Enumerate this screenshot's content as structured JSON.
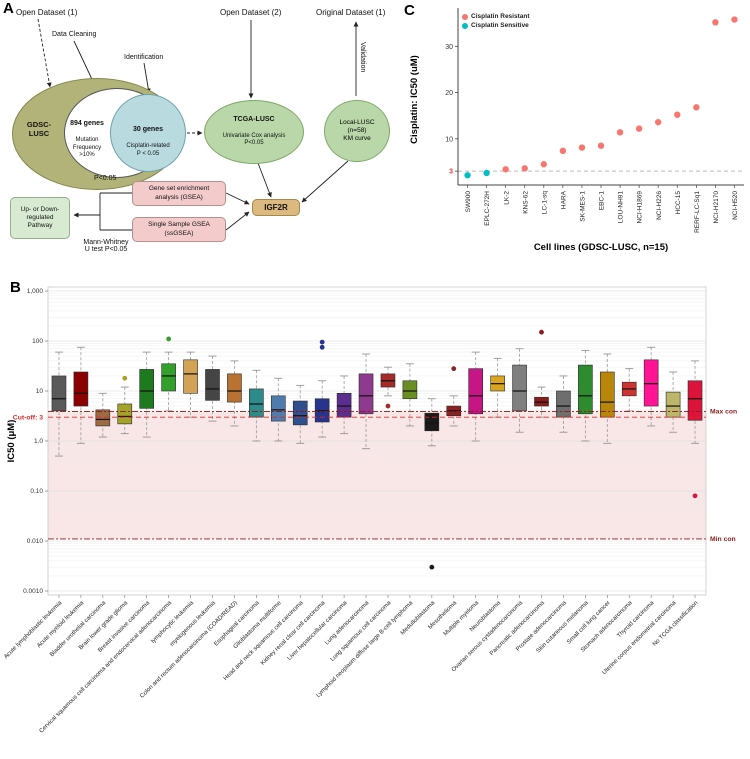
{
  "figure": {
    "panel_a_label": "A",
    "panel_b_label": "B",
    "panel_c_label": "C"
  },
  "flowchart": {
    "open_dataset_1": "Open Dataset (1)",
    "data_cleaning": "Data Cleaning",
    "identification": "Identification",
    "open_dataset_2": "Open Dataset (2)",
    "original_dataset_1": "Original Dataset (1)",
    "validation": "Validation",
    "gdsc_lusc": "GDSC-\nLUSC",
    "genes_894_title": "894 genes",
    "genes_894_sub": "Mutation\nFrequency\n>10%",
    "genes_30_title": "30 genes",
    "genes_30_sub": "Cisplatin-related\nP < 0.05",
    "tcga_title": "TCGA-LUSC",
    "tcga_sub": "Univariate Cox analysis\nP<0.05",
    "local_node": "Local-LUSC\n(n=58)\nKM curve",
    "igf2r": "IGF2R",
    "p_value": "P<0.05",
    "gsea_box": "Gene set enrichment\nanalysis (GSEA)",
    "ssgsea_box": "Single Sample GSEA\n(ssGSEA)",
    "mann_whitney": "Mann-Whitney\nU test P<0.05",
    "pathway_box": "Up- or Down-\nregulated\nPathway"
  },
  "chart_data": [
    {
      "type": "scatter",
      "title": "",
      "xlabel": "Cell lines (GDSC-LUSC, n=15)",
      "ylabel": "Cisplatin: IC50 (uM)",
      "ylim": [
        0,
        37
      ],
      "yticks": [
        3,
        10,
        20,
        30
      ],
      "cutoff_y": 3,
      "grid": false,
      "legend_position": "top-left",
      "legend": [
        {
          "label": "Cisplatin Resistant",
          "color": "#F8766D"
        },
        {
          "label": "Cisplatin Sensitive",
          "color": "#00BFC4"
        }
      ],
      "points": [
        {
          "label": "SW900",
          "value": 2.1,
          "group": "sensitive"
        },
        {
          "label": "EPLC-272H",
          "value": 2.6,
          "group": "sensitive"
        },
        {
          "label": "LK-2",
          "value": 3.4,
          "group": "resistant"
        },
        {
          "label": "KNS-62",
          "value": 3.6,
          "group": "resistant"
        },
        {
          "label": "LC-1-sq",
          "value": 4.5,
          "group": "resistant"
        },
        {
          "label": "HARA",
          "value": 7.4,
          "group": "resistant"
        },
        {
          "label": "SK-MES-1",
          "value": 8.1,
          "group": "resistant"
        },
        {
          "label": "EBC-1",
          "value": 8.5,
          "group": "resistant"
        },
        {
          "label": "LOU-NH91",
          "value": 11.4,
          "group": "resistant"
        },
        {
          "label": "NCI-H1869",
          "value": 12.2,
          "group": "resistant"
        },
        {
          "label": "NCI-H226",
          "value": 13.6,
          "group": "resistant"
        },
        {
          "label": "HCC-15",
          "value": 15.2,
          "group": "resistant"
        },
        {
          "label": "RERF-LC-Sq1",
          "value": 16.8,
          "group": "resistant"
        },
        {
          "label": "NCI-H2170",
          "value": 35.2,
          "group": "resistant"
        },
        {
          "label": "NCI-H520",
          "value": 35.8,
          "group": "resistant"
        }
      ]
    },
    {
      "type": "box",
      "title": "",
      "xlabel": "",
      "ylabel": "IC50 (μM)",
      "ylog": true,
      "ylim": [
        0.001,
        1000
      ],
      "yticks": [
        {
          "value": 1000,
          "label": "1,000"
        },
        {
          "value": 100,
          "label": "100"
        },
        {
          "value": 10,
          "label": "10"
        },
        {
          "value": 1,
          "label": "1.0"
        },
        {
          "value": 0.1,
          "label": "0.10"
        },
        {
          "value": 0.01,
          "label": "0.010"
        },
        {
          "value": 0.001,
          "label": "0.0010"
        }
      ],
      "cutoff": {
        "label": "Cut-off: 3",
        "value": 3
      },
      "max_con": {
        "label": "Max con",
        "value": 3.9
      },
      "min_con": {
        "label": "Min con",
        "value": 0.011
      },
      "band_color": "#f7e1e1",
      "boxes": [
        {
          "category": "Acute lymphoblastic leukemia",
          "color": "#5A5A5A",
          "lo": 0.5,
          "q1": 4,
          "med": 7,
          "q3": 20,
          "hi": 60,
          "outliers": []
        },
        {
          "category": "Acute myeloid leukemia",
          "color": "#8B0000",
          "lo": 0.9,
          "q1": 5,
          "med": 9,
          "q3": 24,
          "hi": 75,
          "outliers": []
        },
        {
          "category": "Bladder urothelial carcinoma",
          "color": "#9C6B44",
          "lo": 1.2,
          "q1": 2,
          "med": 2.7,
          "q3": 4.2,
          "hi": 9,
          "outliers": []
        },
        {
          "category": "Brain lower grade glioma",
          "color": "#A3A329",
          "lo": 1.4,
          "q1": 2.2,
          "med": 3.1,
          "q3": 5.5,
          "hi": 12,
          "outliers": [
            18
          ]
        },
        {
          "category": "Breast invasive carcinoma",
          "color": "#1E7A1E",
          "lo": 1.2,
          "q1": 4.5,
          "med": 10,
          "q3": 27,
          "hi": 60,
          "outliers": []
        },
        {
          "category": "Cervical squamous cell carcinoma and endocervical adenocarcinoma",
          "color": "#33A02C",
          "lo": 4,
          "q1": 10,
          "med": 20,
          "q3": 35,
          "hi": 60,
          "outliers": [
            110
          ]
        },
        {
          "category": "lymphocytic leukemia",
          "color": "#D2A356",
          "lo": 3,
          "q1": 9,
          "med": 22,
          "q3": 42,
          "hi": 60,
          "outliers": []
        },
        {
          "category": "myelogenous leukemia",
          "color": "#454545",
          "lo": 2.5,
          "q1": 6.5,
          "med": 11,
          "q3": 27,
          "hi": 50,
          "outliers": []
        },
        {
          "category": "Colon and rectum adenocarcinoma (COAD/READ)",
          "color": "#B87333",
          "lo": 2,
          "q1": 6,
          "med": 10,
          "q3": 22,
          "hi": 40,
          "outliers": []
        },
        {
          "category": "Esophageal carcinoma",
          "color": "#2E8B8B",
          "lo": 1,
          "q1": 3,
          "med": 5.5,
          "q3": 11,
          "hi": 26,
          "outliers": []
        },
        {
          "category": "Glioblastoma multiforme",
          "color": "#4F7CAC",
          "lo": 1,
          "q1": 2.5,
          "med": 4.2,
          "q3": 8,
          "hi": 18,
          "outliers": []
        },
        {
          "category": "Head and neck squamous cell carcinoma",
          "color": "#2F4F8F",
          "lo": 0.9,
          "q1": 2.1,
          "med": 3.2,
          "q3": 6.3,
          "hi": 13,
          "outliers": []
        },
        {
          "category": "Kidney renal clear cell carcinoma",
          "color": "#27348B",
          "lo": 1.2,
          "q1": 2.4,
          "med": 4,
          "q3": 7,
          "hi": 16,
          "outliers": [
            75,
            95
          ]
        },
        {
          "category": "Liver hepatocellular carcinoma",
          "color": "#5B2D8E",
          "lo": 1.4,
          "q1": 3,
          "med": 5,
          "q3": 9,
          "hi": 20,
          "outliers": []
        },
        {
          "category": "Lung adenocarcinoma",
          "color": "#8E3A8E",
          "lo": 0.7,
          "q1": 3.5,
          "med": 8,
          "q3": 22,
          "hi": 55,
          "outliers": []
        },
        {
          "category": "Lung squamous cell carcinoma",
          "color": "#A52A2A",
          "lo": 8,
          "q1": 12,
          "med": 16,
          "q3": 22,
          "hi": 30,
          "outliers": [
            5
          ]
        },
        {
          "category": "Lymphoid neoplasm diffuse large B-cell lymphoma",
          "color": "#6B8E23",
          "lo": 2,
          "q1": 7,
          "med": 10,
          "q3": 16,
          "hi": 35,
          "outliers": []
        },
        {
          "category": "Medulloblastoma",
          "color": "#1A1A1A",
          "lo": 0.8,
          "q1": 1.6,
          "med": 2.3,
          "q3": 3.6,
          "hi": 7,
          "outliers": [
            0.003
          ]
        },
        {
          "category": "Mesothelioma",
          "color": "#8B2222",
          "lo": 2,
          "q1": 3.2,
          "med": 4,
          "q3": 5,
          "hi": 8,
          "outliers": [
            28
          ]
        },
        {
          "category": "Multiple myeloma",
          "color": "#C71585",
          "lo": 1,
          "q1": 3.5,
          "med": 8,
          "q3": 28,
          "hi": 60,
          "outliers": []
        },
        {
          "category": "Neuroblastoma",
          "color": "#DAA520",
          "lo": 3,
          "q1": 10,
          "med": 14,
          "q3": 20,
          "hi": 45,
          "outliers": []
        },
        {
          "category": "Ovarian serous cystadenocarcinoma",
          "color": "#7F7F7F",
          "lo": 1.5,
          "q1": 4,
          "med": 10,
          "q3": 33,
          "hi": 70,
          "outliers": []
        },
        {
          "category": "Pancreatic adenocarcinoma",
          "color": "#8B1C1C",
          "lo": 3,
          "q1": 5,
          "med": 6,
          "q3": 7.5,
          "hi": 12,
          "outliers": [
            150
          ]
        },
        {
          "category": "Prostate adenocarcinoma",
          "color": "#6E6E6E",
          "lo": 1.5,
          "q1": 3,
          "med": 5,
          "q3": 10,
          "hi": 20,
          "outliers": []
        },
        {
          "category": "Skin cutaneous melanoma",
          "color": "#2E8B2E",
          "lo": 1,
          "q1": 3.5,
          "med": 8,
          "q3": 33,
          "hi": 65,
          "outliers": []
        },
        {
          "category": "Small cell lung cancer",
          "color": "#B8860B",
          "lo": 0.9,
          "q1": 3,
          "med": 6,
          "q3": 24,
          "hi": 55,
          "outliers": []
        },
        {
          "category": "Stomach adenocarcinoma",
          "color": "#CD3333",
          "lo": 4,
          "q1": 8,
          "med": 11,
          "q3": 15,
          "hi": 28,
          "outliers": []
        },
        {
          "category": "Thyroid carcinoma",
          "color": "#FF1493",
          "lo": 2,
          "q1": 5,
          "med": 14,
          "q3": 42,
          "hi": 75,
          "outliers": []
        },
        {
          "category": "Uterine corpus endometrial carcinoma",
          "color": "#BDB76B",
          "lo": 1.5,
          "q1": 3,
          "med": 5,
          "q3": 9.5,
          "hi": 24,
          "outliers": []
        },
        {
          "category": "No TCGA classification",
          "color": "#DC143C",
          "lo": 0.9,
          "q1": 2.6,
          "med": 7,
          "q3": 16,
          "hi": 40,
          "outliers": [
            0.08
          ]
        }
      ]
    }
  ]
}
